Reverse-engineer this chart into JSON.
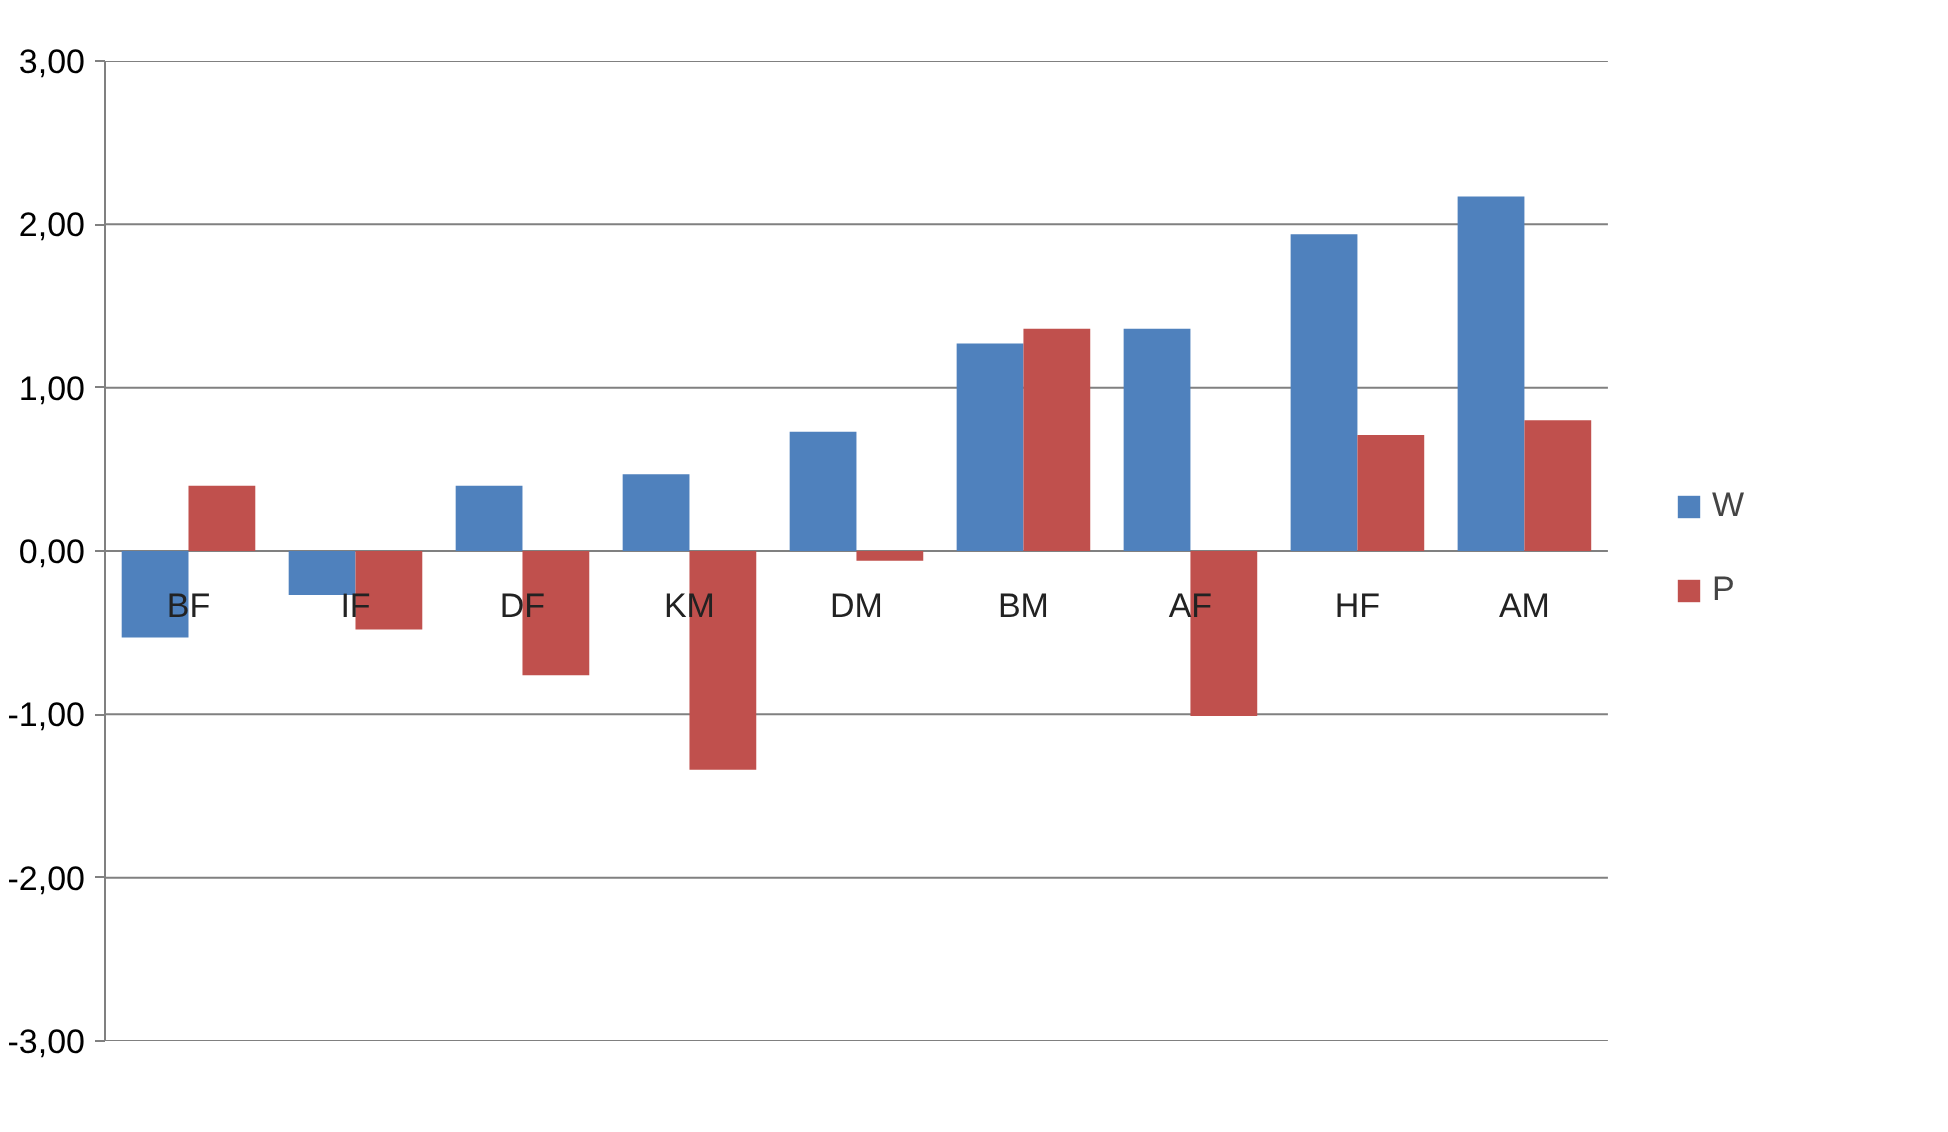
{
  "chart_data": {
    "type": "bar",
    "categories": [
      "BF",
      "IF",
      "DF",
      "KM",
      "DM",
      "BM",
      "AF",
      "HF",
      "AM"
    ],
    "series": [
      {
        "name": "W",
        "color": "#4f81bd",
        "values": [
          -0.53,
          -0.27,
          0.4,
          0.47,
          0.73,
          1.27,
          1.36,
          1.94,
          2.17
        ]
      },
      {
        "name": "P",
        "color": "#c0504d",
        "values": [
          0.4,
          -0.48,
          -0.76,
          -1.34,
          -0.06,
          1.36,
          -1.01,
          0.71,
          0.8
        ]
      }
    ],
    "ylim": [
      -3,
      3
    ],
    "yticks": [
      {
        "value": -3,
        "label": "-3,00"
      },
      {
        "value": -2,
        "label": "-2,00"
      },
      {
        "value": -1,
        "label": "-1,00"
      },
      {
        "value": 0,
        "label": "0,00"
      },
      {
        "value": 1,
        "label": "1,00"
      },
      {
        "value": 2,
        "label": "2,00"
      },
      {
        "value": 3,
        "label": "3,00"
      }
    ],
    "grid": "y",
    "legend": "right"
  }
}
